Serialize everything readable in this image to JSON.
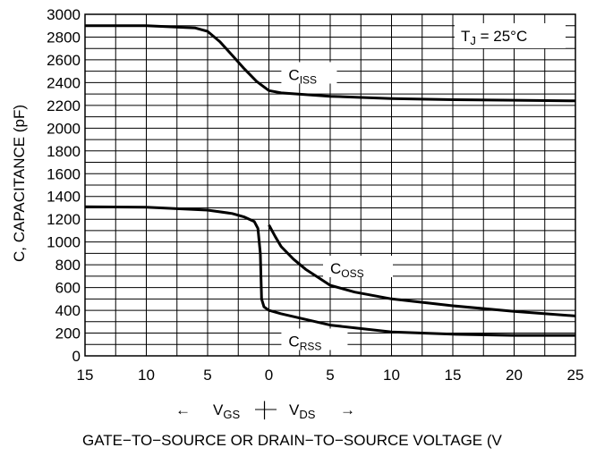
{
  "chart_data": {
    "type": "line",
    "title": "",
    "xlabel": "GATE−TO−SOURCE OR DRAIN−TO−SOURCE VOLTAGE (V",
    "ylabel": "C, CAPACITANCE (pF)",
    "ylim": [
      0,
      3000
    ],
    "yticks": [
      0,
      200,
      400,
      600,
      800,
      1000,
      1200,
      1400,
      1600,
      1800,
      2000,
      2200,
      2400,
      2600,
      2800,
      3000
    ],
    "xticks": [
      "15",
      "10",
      "5",
      "0",
      "5",
      "10",
      "15",
      "20",
      "25"
    ],
    "x_note": "x values: negative = VGS side (left), positive = VDS side (right)",
    "x_range": [
      -15,
      25
    ],
    "direction_labels": {
      "left_arrow": "←",
      "vgs_main": "V",
      "vgs_sub": "GS",
      "divider": "│",
      "vds_main": "V",
      "vds_sub": "DS",
      "right_arrow": "→"
    },
    "annotation": {
      "main": "T",
      "sub": "J",
      "rest": " = 25°C"
    },
    "grid": true,
    "series": [
      {
        "name": "C_ISS",
        "label_main": "C",
        "label_sub": "ISS",
        "x": [
          -15,
          -10,
          -6,
          -5,
          -4,
          -3,
          -2,
          -1,
          -0.5,
          0,
          1,
          5,
          10,
          15,
          20,
          25
        ],
        "y": [
          2900,
          2900,
          2880,
          2850,
          2760,
          2640,
          2520,
          2410,
          2370,
          2330,
          2310,
          2280,
          2260,
          2250,
          2245,
          2240
        ]
      },
      {
        "name": "C_OSS",
        "label_main": "C",
        "label_sub": "OSS",
        "x": [
          0,
          0.5,
          1,
          2,
          3,
          4,
          5,
          7,
          10,
          15,
          20,
          25
        ],
        "y": [
          1150,
          1050,
          960,
          850,
          760,
          690,
          620,
          560,
          500,
          440,
          390,
          350
        ]
      },
      {
        "name": "C_RSS",
        "label_main": "C",
        "label_sub": "RSS",
        "x": [
          -15,
          -10,
          -5,
          -3,
          -2,
          -1.2,
          -0.9,
          -0.7,
          -0.6,
          -0.4,
          0,
          1,
          5,
          10,
          15,
          20,
          25
        ],
        "y": [
          1310,
          1305,
          1280,
          1250,
          1220,
          1180,
          1120,
          900,
          500,
          430,
          400,
          370,
          270,
          210,
          190,
          180,
          180
        ]
      }
    ]
  }
}
